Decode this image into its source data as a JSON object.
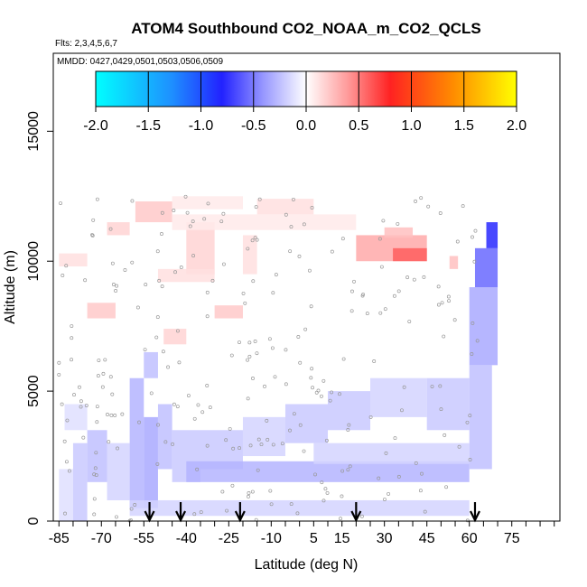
{
  "chart_data": {
    "type": "heatmap",
    "title": "ATOM4 Southbound CO2_NOAA_m_CO2_QCLS",
    "annotations": {
      "flights": "Flts: 2,3,4,5,6,7",
      "dates": "MMDD: 0427,0429,0501,0503,0506,0509"
    },
    "xlabel": "Latitude (deg N)",
    "ylabel": "Altitude (m)",
    "xlim": [
      -87,
      92
    ],
    "ylim": [
      0,
      18000
    ],
    "xtick_labels": [
      "-85",
      "-70",
      "-55",
      "-40",
      "-25",
      "-10",
      "5",
      "15",
      "30",
      "45",
      "60",
      "75"
    ],
    "ytick_labels": [
      "0",
      "5000",
      "10000",
      "15000"
    ],
    "colorbar": {
      "range": [
        -2.0,
        2.0
      ],
      "tick_labels": [
        "-2.0",
        "-1.5",
        "-1.0",
        "-0.5",
        "0.0",
        "0.5",
        "1.0",
        "1.5",
        "2.0"
      ],
      "colors": [
        "#00ffff",
        "#1e90ff",
        "#2020ff",
        "#ffffff",
        "#ff2020",
        "#ff8c00",
        "#ffff00"
      ]
    },
    "arrow_latitudes": [
      -53,
      -42,
      -21,
      20,
      62
    ],
    "cells": [
      {
        "lat": [
          -85,
          -80
        ],
        "alt": [
          0,
          2000
        ],
        "v": -0.15
      },
      {
        "lat": [
          -80,
          -75
        ],
        "alt": [
          0,
          3000
        ],
        "v": -0.25
      },
      {
        "lat": [
          -75,
          -68
        ],
        "alt": [
          1500,
          3500
        ],
        "v": -0.3
      },
      {
        "lat": [
          -68,
          -60
        ],
        "alt": [
          800,
          3000
        ],
        "v": -0.2
      },
      {
        "lat": [
          -60,
          -55
        ],
        "alt": [
          500,
          5500
        ],
        "v": -0.35
      },
      {
        "lat": [
          -55,
          -50
        ],
        "alt": [
          500,
          4000
        ],
        "v": -0.4
      },
      {
        "lat": [
          -50,
          -45
        ],
        "alt": [
          2000,
          4500
        ],
        "v": -0.3
      },
      {
        "lat": [
          -45,
          -35
        ],
        "alt": [
          1500,
          3500
        ],
        "v": -0.25
      },
      {
        "lat": [
          -35,
          -20
        ],
        "alt": [
          2000,
          3500
        ],
        "v": -0.25
      },
      {
        "lat": [
          -20,
          -5
        ],
        "alt": [
          2500,
          4000
        ],
        "v": -0.2
      },
      {
        "lat": [
          -5,
          10
        ],
        "alt": [
          3000,
          4500
        ],
        "v": -0.25
      },
      {
        "lat": [
          10,
          25
        ],
        "alt": [
          3500,
          5000
        ],
        "v": -0.25
      },
      {
        "lat": [
          25,
          45
        ],
        "alt": [
          4000,
          5500
        ],
        "v": -0.2
      },
      {
        "lat": [
          45,
          60
        ],
        "alt": [
          3500,
          5500
        ],
        "v": -0.25
      },
      {
        "lat": [
          60,
          68
        ],
        "alt": [
          2000,
          6000
        ],
        "v": -0.3
      },
      {
        "lat": [
          -40,
          60
        ],
        "alt": [
          1500,
          2300
        ],
        "v": -0.35
      },
      {
        "lat": [
          -60,
          60
        ],
        "alt": [
          200,
          800
        ],
        "v": -0.2
      },
      {
        "lat": [
          5,
          60
        ],
        "alt": [
          2200,
          3000
        ],
        "v": -0.2
      },
      {
        "lat": [
          60,
          70
        ],
        "alt": [
          6000,
          9000
        ],
        "v": -0.4
      },
      {
        "lat": [
          62,
          70
        ],
        "alt": [
          9000,
          10500
        ],
        "v": -0.7
      },
      {
        "lat": [
          66,
          70
        ],
        "alt": [
          10500,
          11500
        ],
        "v": -1.0
      },
      {
        "lat": [
          -55,
          -50
        ],
        "alt": [
          5500,
          6500
        ],
        "v": -0.3
      },
      {
        "lat": [
          -83,
          -75
        ],
        "alt": [
          3500,
          4500
        ],
        "v": -0.15
      },
      {
        "lat": [
          -45,
          -20
        ],
        "alt": [
          12000,
          12500
        ],
        "v": 0.1
      },
      {
        "lat": [
          -15,
          5
        ],
        "alt": [
          11800,
          12400
        ],
        "v": 0.15
      },
      {
        "lat": [
          -58,
          -45
        ],
        "alt": [
          11500,
          12300
        ],
        "v": 0.25
      },
      {
        "lat": [
          -40,
          -30
        ],
        "alt": [
          9500,
          11500
        ],
        "v": 0.2
      },
      {
        "lat": [
          -68,
          -60
        ],
        "alt": [
          11000,
          11500
        ],
        "v": 0.2
      },
      {
        "lat": [
          -75,
          -65
        ],
        "alt": [
          7800,
          8400
        ],
        "v": 0.25
      },
      {
        "lat": [
          -48,
          -40
        ],
        "alt": [
          6800,
          7400
        ],
        "v": 0.2
      },
      {
        "lat": [
          -30,
          -20
        ],
        "alt": [
          7800,
          8300
        ],
        "v": 0.25
      },
      {
        "lat": [
          -20,
          -15
        ],
        "alt": [
          9500,
          11000
        ],
        "v": 0.15
      },
      {
        "lat": [
          -45,
          20
        ],
        "alt": [
          11200,
          11800
        ],
        "v": 0.1
      },
      {
        "lat": [
          20,
          45
        ],
        "alt": [
          10000,
          11000
        ],
        "v": 0.4
      },
      {
        "lat": [
          33,
          45
        ],
        "alt": [
          10000,
          10500
        ],
        "v": 0.75
      },
      {
        "lat": [
          30,
          40
        ],
        "alt": [
          10900,
          11300
        ],
        "v": 0.3
      },
      {
        "lat": [
          -85,
          -75
        ],
        "alt": [
          9800,
          10300
        ],
        "v": 0.15
      },
      {
        "lat": [
          53,
          56
        ],
        "alt": [
          9700,
          10200
        ],
        "v": 0.3
      },
      {
        "lat": [
          -50,
          -30
        ],
        "alt": [
          9200,
          9700
        ],
        "v": 0.15
      }
    ],
    "arrows_count": 5
  }
}
